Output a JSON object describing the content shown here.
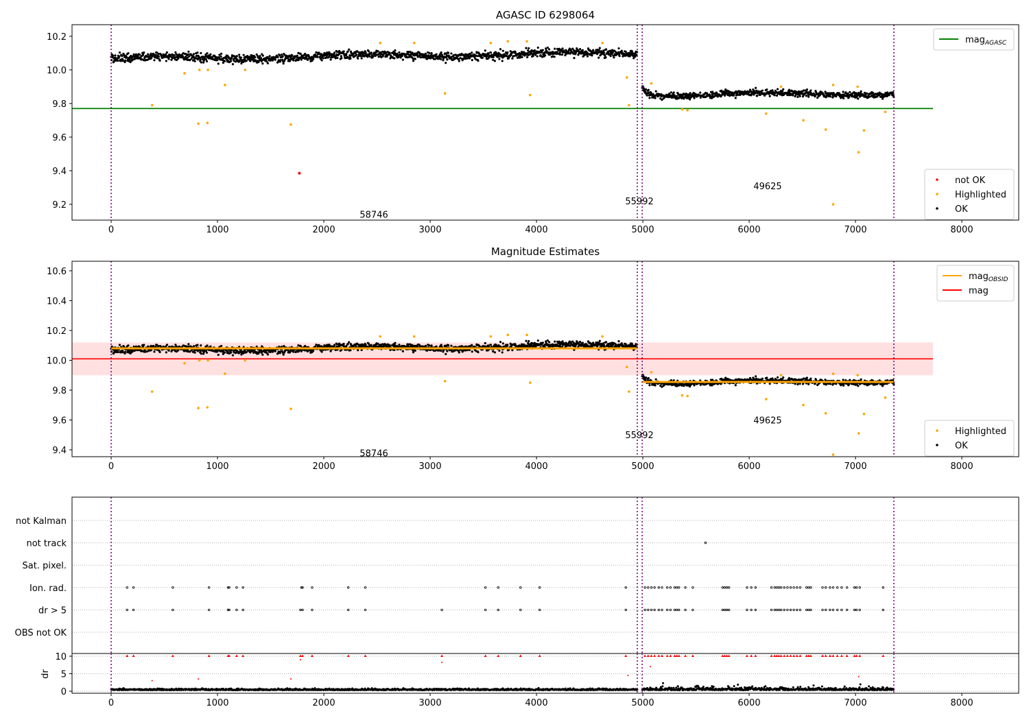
{
  "chart_data": [
    {
      "type": "scatter",
      "title": "AGASC ID 6298064",
      "xlim": [
        -368,
        8535
      ],
      "ylim": [
        9.106,
        10.269
      ],
      "xticks": [
        "0",
        "1000",
        "2000",
        "3000",
        "4000",
        "5000",
        "6000",
        "7000",
        "8000"
      ],
      "yticks": [
        "9.2",
        "9.4",
        "9.6",
        "9.8",
        "10.0",
        "10.2"
      ],
      "legend_upper": {
        "placement": "top-right",
        "entries": [
          {
            "label": "mag",
            "sub": "AGASC",
            "color": "#008000"
          }
        ]
      },
      "legend_lower": {
        "placement": "bottom-right",
        "entries": [
          {
            "label": "not OK",
            "color": "#ff0000"
          },
          {
            "label": "Highlighted",
            "color": "#ffa500"
          },
          {
            "label": "OK",
            "color": "#000000"
          }
        ]
      },
      "mag_agasc": {
        "value": 9.77,
        "xrange": [
          -368,
          7729
        ]
      },
      "annotations": [
        {
          "text": "58746",
          "x": 2471,
          "y": 9.14
        },
        {
          "text": "55992",
          "x": 4968,
          "y": 9.22
        },
        {
          "text": "49625",
          "x": 6174,
          "y": 9.31
        }
      ],
      "not_ok": [
        [
          1770,
          9.385
        ]
      ]
    },
    {
      "type": "scatter",
      "title": "Magnitude Estimates",
      "xlim": [
        -368,
        8535
      ],
      "ylim": [
        9.354,
        10.664
      ],
      "xticks": [
        "0",
        "1000",
        "2000",
        "3000",
        "4000",
        "5000",
        "6000",
        "7000",
        "8000"
      ],
      "yticks": [
        "9.4",
        "9.6",
        "9.8",
        "10.0",
        "10.2",
        "10.4",
        "10.6"
      ],
      "legend_upper": {
        "placement": "top-right",
        "entries": [
          {
            "label": "mag",
            "sub": "OBSID",
            "color": "#ffa500"
          },
          {
            "label": "mag",
            "sub": "",
            "color": "#ff0000"
          }
        ]
      },
      "legend_lower": {
        "placement": "bottom-right",
        "entries": [
          {
            "label": "Highlighted",
            "color": "#ffa500"
          },
          {
            "label": "OK",
            "color": "#000000"
          }
        ]
      },
      "mag": {
        "value": 10.01,
        "band": [
          9.9,
          10.12
        ],
        "xrange": [
          -368,
          7729
        ]
      },
      "mag_obsid": [
        {
          "x": [
            0,
            4948
          ],
          "value": 10.08
        },
        {
          "x": [
            4994,
            7361
          ],
          "value": 9.855
        }
      ],
      "annotations": [
        {
          "text": "58746",
          "x": 2471,
          "y": 9.38
        },
        {
          "text": "55992",
          "x": 4968,
          "y": 9.5
        },
        {
          "text": "49625",
          "x": 6174,
          "y": 9.6
        }
      ]
    },
    {
      "type": "scatter",
      "title": "",
      "flag_categories": [
        "not Kalman",
        "not track",
        "Sat. pixel.",
        "Ion. rad.",
        "dr > 5",
        "OBS not OK"
      ],
      "flags": {
        "not track": [
          5590
        ],
        "Ion. rad.": [
          150,
          210,
          580,
          920,
          1100,
          1110,
          1180,
          1240,
          1790,
          1800,
          1890,
          2230,
          2390,
          3520,
          3640,
          3850,
          4030,
          4840,
          5020,
          5050,
          5080,
          5110,
          5150,
          5180,
          5230,
          5260,
          5300,
          5320,
          5340,
          5400,
          5470,
          5750,
          5770,
          5790,
          5810,
          5980,
          6020,
          6060,
          6210,
          6240,
          6260,
          6280,
          6300,
          6330,
          6360,
          6390,
          6420,
          6450,
          6480,
          6540,
          6560,
          6580,
          6690,
          6720,
          6760,
          6790,
          6830,
          6870,
          6920,
          6990,
          7010,
          7040,
          7260
        ],
        "dr > 5": [
          150,
          210,
          580,
          920,
          1100,
          1110,
          1180,
          1240,
          1780,
          1800,
          1890,
          2230,
          2390,
          3110,
          3520,
          3640,
          3850,
          4030,
          4840,
          5020,
          5050,
          5080,
          5110,
          5150,
          5180,
          5230,
          5260,
          5300,
          5320,
          5340,
          5400,
          5470,
          5750,
          5770,
          5790,
          5810,
          5980,
          6020,
          6060,
          6210,
          6240,
          6260,
          6280,
          6300,
          6330,
          6360,
          6390,
          6420,
          6450,
          6480,
          6540,
          6560,
          6580,
          6690,
          6720,
          6760,
          6790,
          6830,
          6870,
          6920,
          6990,
          7010,
          7040,
          7260
        ]
      },
      "dr": {
        "ylabel": "dr",
        "ylim": [
          -0.59,
          10.78
        ],
        "yticks": [
          "0",
          "5",
          "10"
        ],
        "high_dr": [
          [
            385,
            3
          ],
          [
            820,
            3.5
          ],
          [
            1690,
            3.5
          ],
          [
            1780,
            9
          ],
          [
            3110,
            8.2
          ],
          [
            4860,
            4.5
          ],
          [
            5070,
            7
          ],
          [
            7030,
            4.2
          ]
        ]
      },
      "xticks": [
        "0",
        "1000",
        "2000",
        "3000",
        "4000",
        "5000",
        "6000",
        "7000",
        "8000"
      ],
      "xlim": [
        -368,
        8535
      ]
    }
  ],
  "observation_boundaries": [
    0,
    4948,
    4994,
    7361
  ],
  "ok_model": {
    "segments": [
      {
        "x": [
          0,
          4948
        ],
        "start": 10.065,
        "end": 10.1,
        "noise": 0.025
      },
      {
        "x": [
          4994,
          7361
        ],
        "start": 9.85,
        "end": 9.86,
        "noise": 0.018
      }
    ]
  },
  "highlighted": [
    [
      385,
      9.79
    ],
    [
      690,
      9.98
    ],
    [
      820,
      9.68
    ],
    [
      830,
      10.0
    ],
    [
      905,
      9.685
    ],
    [
      910,
      10.0
    ],
    [
      1070,
      9.91
    ],
    [
      1260,
      10.0
    ],
    [
      1690,
      9.675
    ],
    [
      2530,
      10.16
    ],
    [
      2850,
      10.16
    ],
    [
      3140,
      9.86
    ],
    [
      3570,
      10.16
    ],
    [
      3730,
      10.17
    ],
    [
      3910,
      10.17
    ],
    [
      3940,
      9.85
    ],
    [
      4620,
      10.16
    ],
    [
      4850,
      9.955
    ],
    [
      4870,
      9.79
    ],
    [
      5080,
      9.92
    ],
    [
      5370,
      9.765
    ],
    [
      5420,
      9.76
    ],
    [
      6160,
      9.74
    ],
    [
      6300,
      9.9
    ],
    [
      6510,
      9.7
    ],
    [
      6720,
      9.645
    ],
    [
      6790,
      9.91
    ],
    [
      6790,
      9.2
    ],
    [
      7020,
      9.9
    ],
    [
      7030,
      9.51
    ],
    [
      7080,
      9.64
    ],
    [
      7280,
      9.75
    ]
  ]
}
